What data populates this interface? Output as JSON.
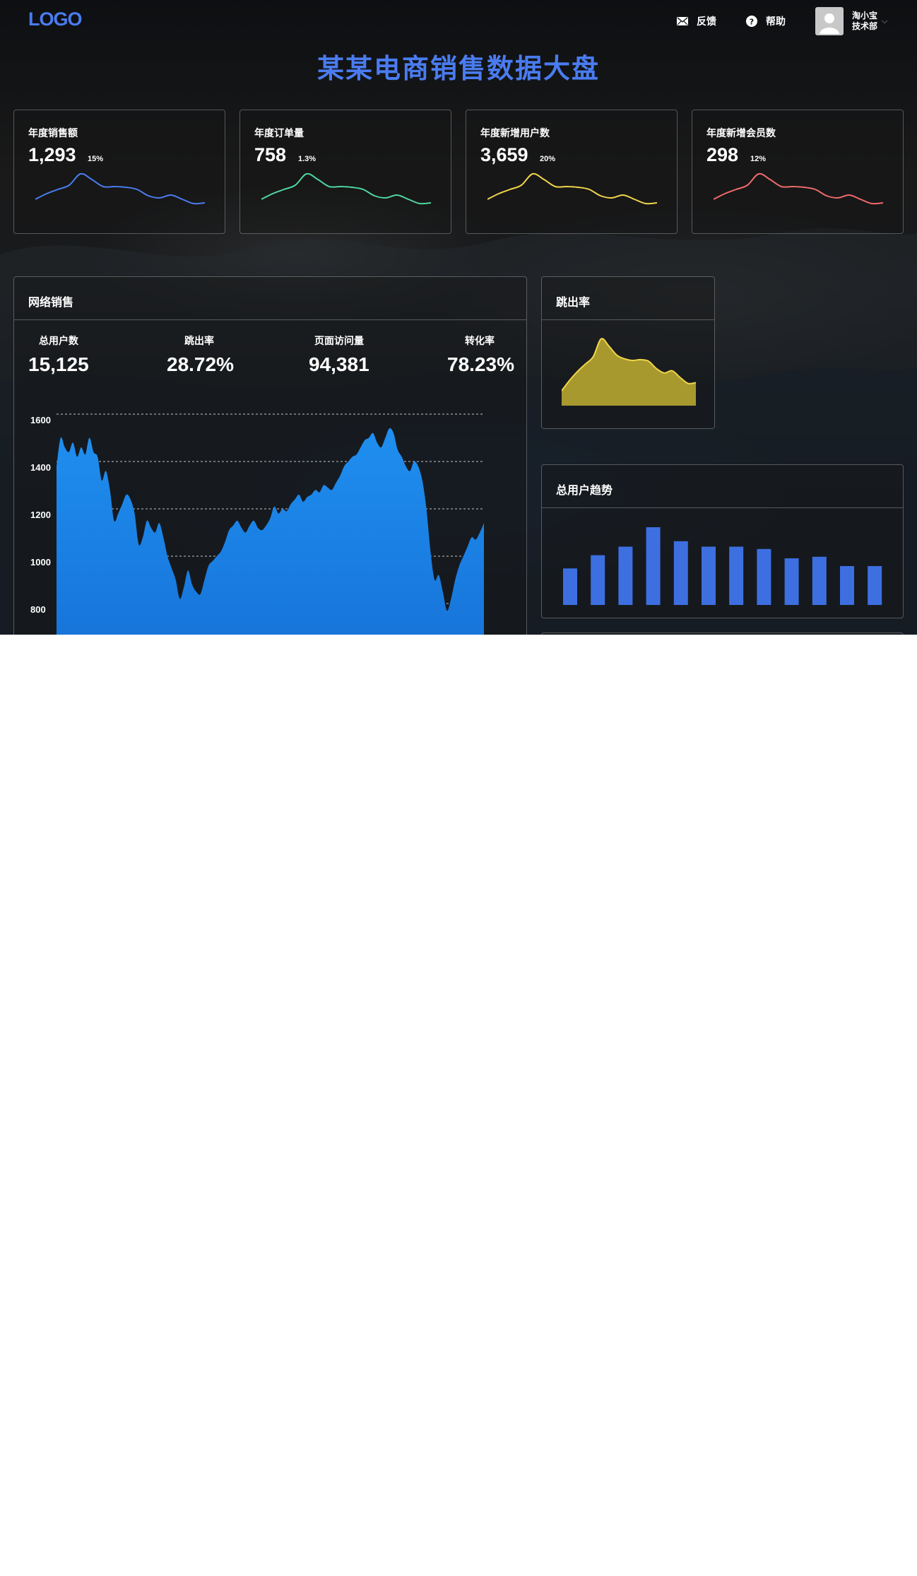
{
  "header": {
    "logo": "LOGO",
    "feedback": "反馈",
    "help": "帮助",
    "user_name": "淘小宝",
    "user_dept": "技术部",
    "icons": {
      "feedback": "mail-icon",
      "help": "question-circle-icon",
      "avatar": "user-avatar-icon",
      "menu": "chevron-down-icon"
    }
  },
  "page_title": "某某电商销售数据大盘",
  "colors": {
    "accent": "#4a7cf0",
    "green": "#4fd6a0",
    "yellow": "#f2d54a",
    "red": "#f06a6a",
    "area_blue": "#1a86e8",
    "bar_blue": "#3d6fe0",
    "gold": "#b0a034"
  },
  "kpis": [
    {
      "label": "年度销售额",
      "value": "1,293",
      "pct": "15%",
      "color": "#4a7cf0"
    },
    {
      "label": "年度订单量",
      "value": "758",
      "pct": "1.3%",
      "color": "#4fd6a0"
    },
    {
      "label": "年度新增用户数",
      "value": "3,659",
      "pct": "20%",
      "color": "#f2d54a"
    },
    {
      "label": "年度新增会员数",
      "value": "298",
      "pct": "12%",
      "color": "#f06a6a"
    }
  ],
  "net_sales": {
    "title": "网络销售",
    "stats": [
      {
        "label": "总用户数",
        "value": "15,125"
      },
      {
        "label": "跳出率",
        "value": "28.72%"
      },
      {
        "label": "页面访问量",
        "value": "94,381"
      },
      {
        "label": "转化率",
        "value": "78.23%"
      }
    ]
  },
  "bounce": {
    "title": "跳出率"
  },
  "users_trend": {
    "title": "总用户趋势"
  },
  "chart_data": [
    {
      "type": "area",
      "title": "网络销售",
      "xlabel": "",
      "ylabel": "",
      "ylim": [
        600,
        1700
      ],
      "yticks": [
        "1600",
        "1400",
        "1200",
        "1000",
        "800"
      ],
      "grid": true,
      "values": [
        1380,
        1500,
        1460,
        1440,
        1480,
        1420,
        1460,
        1430,
        1500,
        1440,
        1420,
        1320,
        1360,
        1280,
        1150,
        1180,
        1220,
        1260,
        1240,
        1180,
        1050,
        1080,
        1150,
        1120,
        1100,
        1140,
        1080,
        1000,
        950,
        900,
        820,
        870,
        940,
        880,
        850,
        840,
        900,
        960,
        980,
        1000,
        1020,
        1060,
        1110,
        1130,
        1150,
        1120,
        1100,
        1130,
        1150,
        1120,
        1110,
        1130,
        1160,
        1210,
        1180,
        1200,
        1190,
        1220,
        1240,
        1260,
        1230,
        1250,
        1260,
        1280,
        1270,
        1300,
        1290,
        1280,
        1310,
        1340,
        1380,
        1400,
        1420,
        1430,
        1460,
        1490,
        1500,
        1520,
        1480,
        1460,
        1500,
        1540,
        1520,
        1450,
        1420,
        1380,
        1360,
        1400,
        1380,
        1320,
        1200,
        1020,
        900,
        920,
        850,
        770,
        820,
        900,
        960,
        1000,
        1040,
        1080,
        1070,
        1100,
        1140
      ]
    },
    {
      "type": "area",
      "title": "跳出率",
      "values": [
        20,
        34,
        46,
        56,
        66,
        90,
        80,
        68,
        63,
        61,
        62,
        60,
        50,
        44,
        47,
        38,
        30,
        31
      ]
    },
    {
      "type": "bar",
      "title": "总用户趋势",
      "values": [
        47,
        64,
        75,
        100,
        82,
        75,
        75,
        72,
        60,
        62,
        50,
        50
      ]
    },
    {
      "type": "line",
      "title": "年度销售额",
      "values": [
        10,
        18,
        24,
        30,
        46,
        38,
        28,
        28,
        27,
        24,
        15,
        12,
        16,
        10,
        4,
        5
      ]
    },
    {
      "type": "line",
      "title": "年度订单量",
      "values": [
        10,
        18,
        24,
        30,
        46,
        38,
        28,
        28,
        27,
        24,
        15,
        12,
        16,
        10,
        4,
        5
      ]
    },
    {
      "type": "line",
      "title": "年度新增用户数",
      "values": [
        10,
        18,
        24,
        30,
        46,
        38,
        28,
        28,
        27,
        24,
        15,
        12,
        16,
        10,
        4,
        5
      ]
    },
    {
      "type": "line",
      "title": "年度新增会员数",
      "values": [
        10,
        18,
        24,
        30,
        46,
        38,
        28,
        28,
        27,
        24,
        15,
        12,
        16,
        10,
        4,
        5
      ]
    }
  ]
}
